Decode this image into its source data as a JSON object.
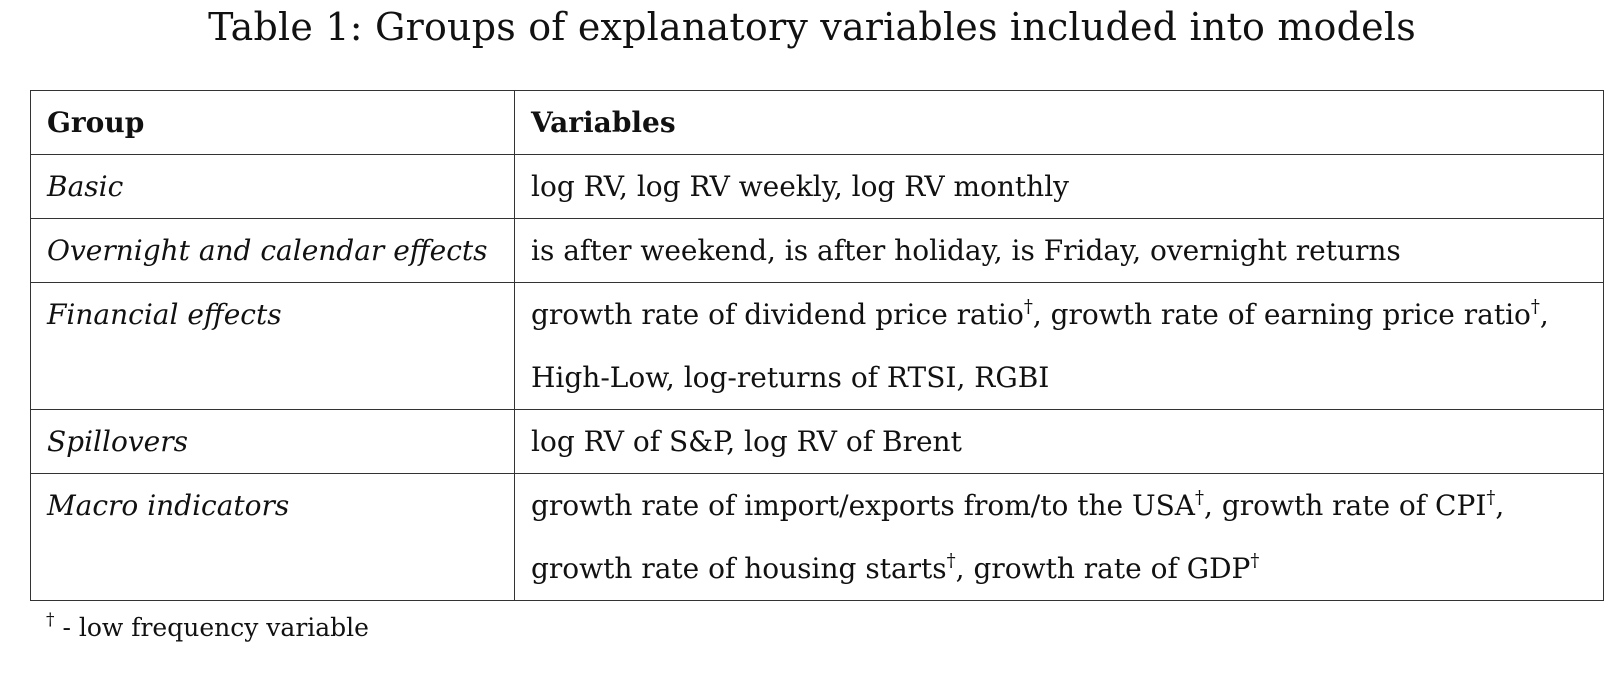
{
  "caption": "Table 1: Groups of explanatory variables included into models",
  "table": {
    "headers": [
      "Group",
      "Variables"
    ],
    "rows": [
      {
        "group": "Basic",
        "lines": [
          [
            {
              "t": "log RV, log RV weekly, log RV monthly"
            }
          ]
        ]
      },
      {
        "group": "Overnight and calendar effects",
        "lines": [
          [
            {
              "t": "is after weekend, is after holiday, is Friday, overnight returns"
            }
          ]
        ]
      },
      {
        "group": "Financial effects",
        "lines": [
          [
            {
              "t": "growth rate of dividend price ratio"
            },
            {
              "sup": "†"
            },
            {
              "t": ", growth rate of earning price ratio"
            },
            {
              "sup": "†"
            },
            {
              "t": ","
            }
          ],
          [
            {
              "t": "High-Low, log-returns of RTSI, RGBI"
            }
          ]
        ]
      },
      {
        "group": "Spillovers",
        "lines": [
          [
            {
              "t": "log RV of S&P, log RV of Brent"
            }
          ]
        ]
      },
      {
        "group": "Macro indicators",
        "lines": [
          [
            {
              "t": "growth rate of import/exports from/to the USA"
            },
            {
              "sup": "†"
            },
            {
              "t": ", growth rate of CPI"
            },
            {
              "sup": "†"
            },
            {
              "t": ","
            }
          ],
          [
            {
              "t": "growth rate of housing starts"
            },
            {
              "sup": "†"
            },
            {
              "t": ", growth rate of GDP"
            },
            {
              "sup": "†"
            }
          ]
        ]
      }
    ]
  },
  "footnote": {
    "symbol": "†",
    "text": " - low frequency variable"
  }
}
